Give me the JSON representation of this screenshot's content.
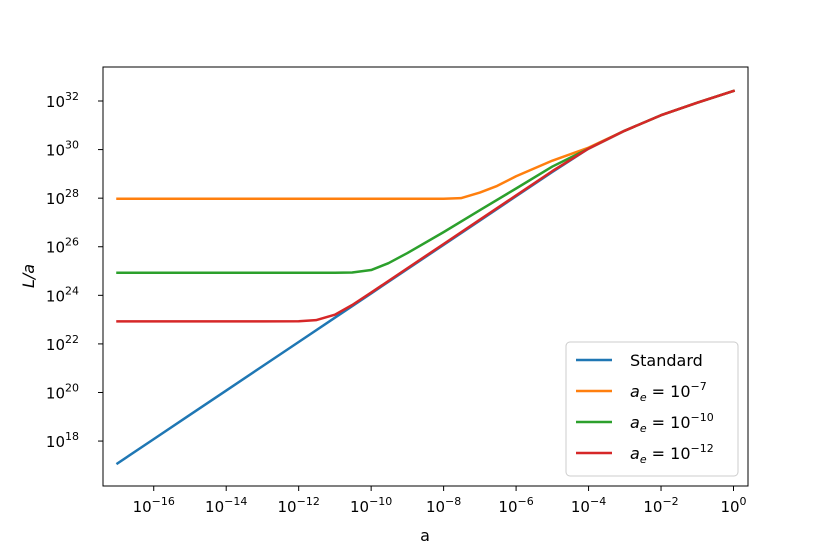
{
  "chart_data": {
    "type": "line",
    "title": "",
    "xlabel": "a",
    "ylabel": "L/a",
    "xscale": "log",
    "yscale": "log",
    "xlim": [
      1e-17,
      1.0
    ],
    "ylim": [
      1e+17,
      1e+33
    ],
    "x_ticks": [
      {
        "base": "10",
        "exp": "−16"
      },
      {
        "base": "10",
        "exp": "−14"
      },
      {
        "base": "10",
        "exp": "−12"
      },
      {
        "base": "10",
        "exp": "−10"
      },
      {
        "base": "10",
        "exp": "−8"
      },
      {
        "base": "10",
        "exp": "−6"
      },
      {
        "base": "10",
        "exp": "−4"
      },
      {
        "base": "10",
        "exp": "−2"
      },
      {
        "base": "10",
        "exp": "0"
      }
    ],
    "y_ticks": [
      {
        "base": "10",
        "exp": "18"
      },
      {
        "base": "10",
        "exp": "20"
      },
      {
        "base": "10",
        "exp": "22"
      },
      {
        "base": "10",
        "exp": "24"
      },
      {
        "base": "10",
        "exp": "26"
      },
      {
        "base": "10",
        "exp": "28"
      },
      {
        "base": "10",
        "exp": "30"
      },
      {
        "base": "10",
        "exp": "32"
      }
    ],
    "grid": false,
    "legend_position": "lower right",
    "series": [
      {
        "name": "Standard",
        "color": "#1f77b4",
        "x": [
          1e-17,
          1e-16,
          1e-15,
          1e-14,
          1e-13,
          1e-12,
          1e-11,
          1e-10,
          1e-09,
          1e-08,
          1e-07,
          1e-06,
          1e-05,
          0.0001,
          0.001,
          0.01,
          0.1,
          1.0
        ],
        "y": [
          1.2e+17,
          1.2e+18,
          1.2e+19,
          1.2e+20,
          1.2e+21,
          1.2e+22,
          1.2e+23,
          1.2e+24,
          1.2e+25,
          1.2e+26,
          1.2e+27,
          1.2e+28,
          1.2e+29,
          1.1e+30,
          6e+30,
          2.6e+31,
          8.5e+31,
          2.6e+32
        ]
      },
      {
        "name": "a_e = 10^-7",
        "label_parts": {
          "base": "10",
          "exp": "−7"
        },
        "color": "#ff7f0e",
        "x": [
          1e-17,
          1e-14,
          1e-11,
          1e-09,
          1e-08,
          3e-08,
          1e-07,
          3e-07,
          1e-06,
          1e-05,
          0.0001,
          0.001,
          0.01,
          0.1,
          1.0
        ],
        "y": [
          9.5e+27,
          9.5e+27,
          9.5e+27,
          9.5e+27,
          9.5e+27,
          1e+28,
          1.7e+28,
          3.2e+28,
          8e+28,
          3.5e+29,
          1.2e+30,
          6e+30,
          2.6e+31,
          8.5e+31,
          2.6e+32
        ]
      },
      {
        "name": "a_e = 10^-10",
        "label_parts": {
          "base": "10",
          "exp": "−10"
        },
        "color": "#2ca02c",
        "x": [
          1e-17,
          1e-14,
          1e-12,
          1e-11,
          3e-11,
          1e-10,
          3e-10,
          1e-09,
          1e-08,
          1e-07,
          1e-06,
          1e-05,
          0.0001,
          0.001,
          0.01,
          0.1,
          1.0
        ],
        "y": [
          8.5e+24,
          8.5e+24,
          8.5e+24,
          8.5e+24,
          8.7e+24,
          1.1e+25,
          2.1e+25,
          5.5e+25,
          4e+26,
          3.2e+27,
          2.5e+28,
          2e+29,
          1.1e+30,
          6e+30,
          2.6e+31,
          8.5e+31,
          2.6e+32
        ]
      },
      {
        "name": "a_e = 10^-12",
        "label_parts": {
          "base": "10",
          "exp": "−12"
        },
        "color": "#d62728",
        "x": [
          1e-17,
          1e-15,
          1e-13,
          1e-12,
          3e-12,
          1e-11,
          3e-11,
          1e-10,
          1e-09,
          1e-08,
          1e-07,
          1e-06,
          1e-05,
          0.0001,
          0.001,
          0.01,
          0.1,
          1.0
        ],
        "y": [
          8.5e+22,
          8.5e+22,
          8.5e+22,
          8.6e+22,
          9.5e+22,
          1.6e+23,
          4e+23,
          1.3e+24,
          1.3e+25,
          1.3e+26,
          1.3e+27,
          1.3e+28,
          1.3e+29,
          1.1e+30,
          6e+30,
          2.6e+31,
          8.5e+31,
          2.6e+32
        ]
      }
    ]
  }
}
